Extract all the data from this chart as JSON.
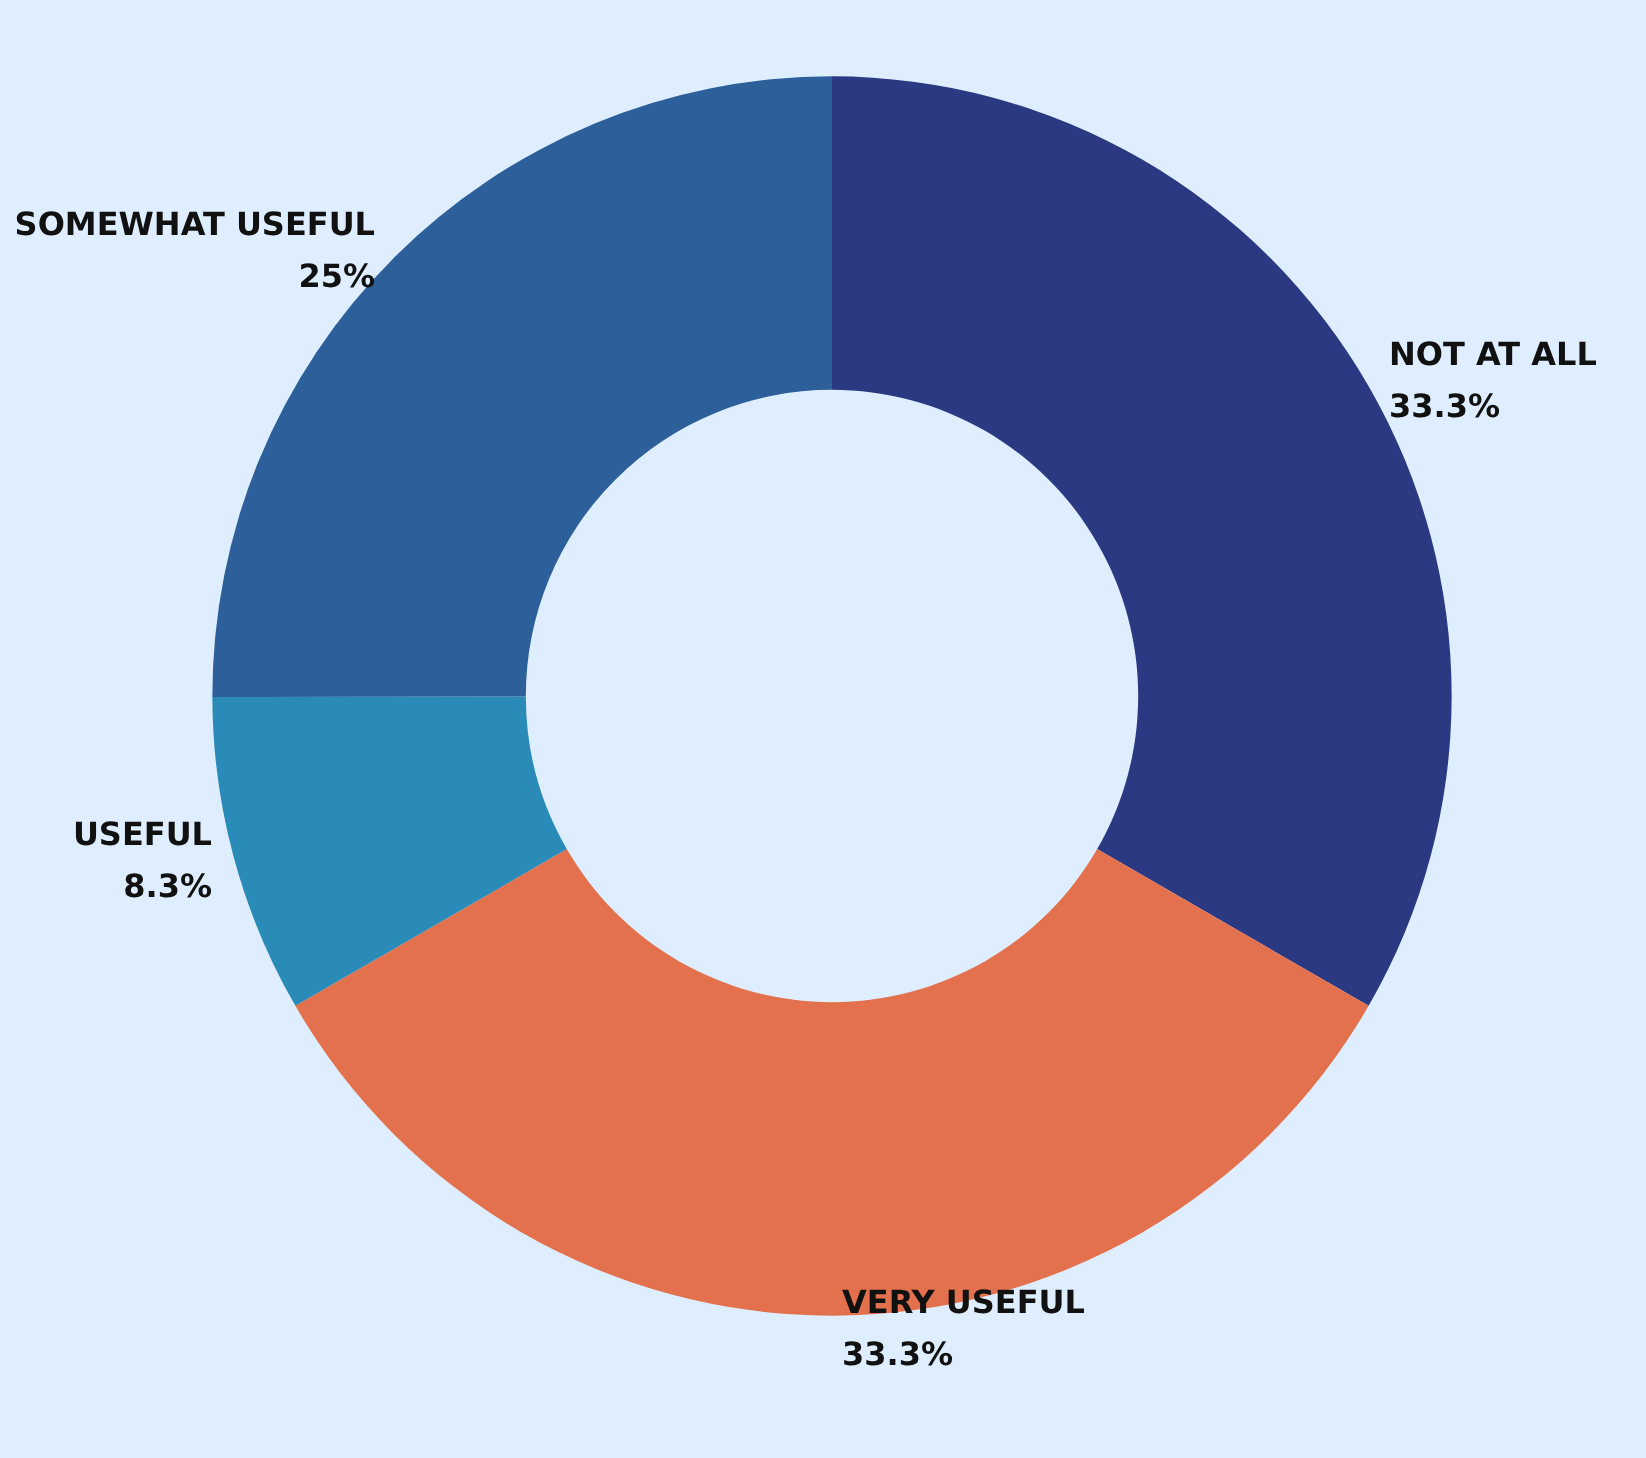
{
  "chart_data": {
    "type": "donut",
    "categories": [
      "NOT AT ALL",
      "VERY USEFUL",
      "USEFUL",
      "SOMEWHAT USEFUL"
    ],
    "values": [
      33.3,
      33.3,
      8.3,
      25
    ],
    "colors": [
      "#2b3982",
      "#e3714d",
      "#2a8bb8",
      "#2d609a"
    ],
    "value_labels": [
      "33.3%",
      "33.3%",
      "8.3%",
      "25%"
    ]
  }
}
